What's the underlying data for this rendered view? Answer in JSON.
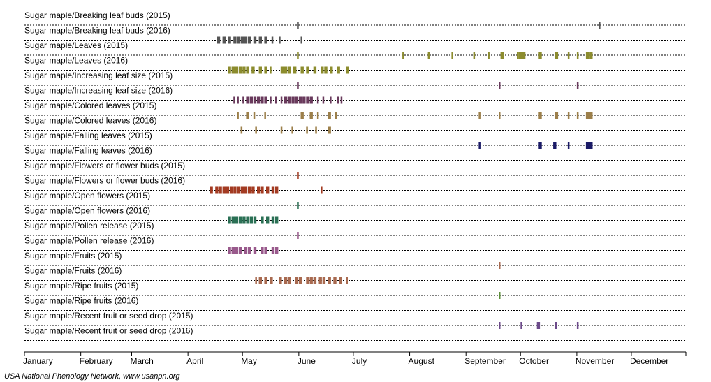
{
  "chart_data": {
    "type": "timeline",
    "xlabel": "",
    "months": [
      "January",
      "February",
      "March",
      "April",
      "May",
      "June",
      "July",
      "August",
      "September",
      "October",
      "November",
      "December"
    ],
    "x_domain_days": [
      1,
      365
    ],
    "rows": [
      {
        "label": "Sugar maple/Breaking leaf buds (2015)",
        "color": "#555555",
        "observations": [
          [
            151,
            152
          ],
          [
            317,
            318
          ]
        ]
      },
      {
        "label": "Sugar maple/Breaking leaf buds (2016)",
        "color": "#555555",
        "observations": [
          [
            107,
            109
          ],
          [
            110,
            112
          ],
          [
            113,
            115
          ],
          [
            116,
            118
          ],
          [
            118,
            120
          ],
          [
            120,
            122
          ],
          [
            122,
            124
          ],
          [
            124,
            126
          ],
          [
            127,
            129
          ],
          [
            130,
            132
          ],
          [
            133,
            135
          ],
          [
            137,
            138
          ],
          [
            141,
            142
          ],
          [
            153,
            154
          ]
        ]
      },
      {
        "label": "Sugar maple/Leaves (2015)",
        "color": "#8c8c2e",
        "observations": [
          [
            151,
            152
          ],
          [
            209,
            210
          ],
          [
            223,
            224
          ],
          [
            236,
            237
          ],
          [
            248,
            249
          ],
          [
            256,
            257
          ],
          [
            263,
            265
          ],
          [
            272,
            273
          ],
          [
            273,
            275
          ],
          [
            275,
            277
          ],
          [
            284,
            286
          ],
          [
            293,
            295
          ],
          [
            300,
            301
          ],
          [
            305,
            306
          ],
          [
            310,
            312
          ],
          [
            312,
            314
          ]
        ]
      },
      {
        "label": "Sugar maple/Leaves (2016)",
        "color": "#8c8c2e",
        "observations": [
          [
            113,
            115
          ],
          [
            115,
            117
          ],
          [
            117,
            119
          ],
          [
            119,
            121
          ],
          [
            121,
            123
          ],
          [
            123,
            125
          ],
          [
            126,
            128
          ],
          [
            130,
            132
          ],
          [
            133,
            135
          ],
          [
            136,
            137
          ],
          [
            142,
            144
          ],
          [
            144,
            146
          ],
          [
            146,
            148
          ],
          [
            149,
            151
          ],
          [
            153,
            155
          ],
          [
            156,
            158
          ],
          [
            160,
            162
          ],
          [
            164,
            166
          ],
          [
            166,
            168
          ],
          [
            169,
            171
          ],
          [
            173,
            175
          ],
          [
            178,
            180
          ]
        ]
      },
      {
        "label": "Sugar maple/Increasing leaf size (2015)",
        "color": "#693a5c",
        "observations": [
          [
            151,
            152
          ],
          [
            262,
            263
          ],
          [
            305,
            306
          ]
        ]
      },
      {
        "label": "Sugar maple/Increasing leaf size (2016)",
        "color": "#693a5c",
        "observations": [
          [
            116,
            117
          ],
          [
            118,
            119
          ],
          [
            121,
            122
          ],
          [
            123,
            125
          ],
          [
            125,
            127
          ],
          [
            127,
            129
          ],
          [
            129,
            131
          ],
          [
            131,
            133
          ],
          [
            133,
            135
          ],
          [
            136,
            137
          ],
          [
            139,
            140
          ],
          [
            142,
            143
          ],
          [
            144,
            146
          ],
          [
            146,
            148
          ],
          [
            148,
            150
          ],
          [
            150,
            152
          ],
          [
            152,
            154
          ],
          [
            154,
            156
          ],
          [
            156,
            158
          ],
          [
            158,
            160
          ],
          [
            162,
            163
          ],
          [
            165,
            166
          ],
          [
            169,
            170
          ],
          [
            173,
            174
          ],
          [
            175,
            176
          ]
        ]
      },
      {
        "label": "Sugar maple/Colored leaves (2015)",
        "color": "#9c7f4a",
        "observations": [
          [
            118,
            119
          ],
          [
            123,
            125
          ],
          [
            127,
            128
          ],
          [
            133,
            134
          ],
          [
            153,
            155
          ],
          [
            158,
            160
          ],
          [
            162,
            163
          ],
          [
            168,
            170
          ],
          [
            172,
            173
          ],
          [
            251,
            252
          ],
          [
            262,
            263
          ],
          [
            284,
            286
          ],
          [
            293,
            295
          ],
          [
            300,
            301
          ],
          [
            305,
            306
          ],
          [
            310,
            314
          ]
        ]
      },
      {
        "label": "Sugar maple/Colored leaves (2016)",
        "color": "#9c7f4a",
        "observations": [
          [
            120,
            121
          ],
          [
            128,
            129
          ],
          [
            142,
            143
          ],
          [
            148,
            149
          ],
          [
            156,
            157
          ],
          [
            161,
            162
          ],
          [
            168,
            170
          ]
        ]
      },
      {
        "label": "Sugar maple/Falling leaves (2015)",
        "color": "#1a1a66",
        "observations": [
          [
            251,
            252
          ],
          [
            284,
            286
          ],
          [
            292,
            294
          ],
          [
            300,
            301
          ],
          [
            310,
            314
          ]
        ]
      },
      {
        "label": "Sugar maple/Falling leaves (2016)",
        "color": "#1a1a66",
        "observations": []
      },
      {
        "label": "Sugar maple/Flowers or flower buds (2015)",
        "color": "#a33b22",
        "observations": [
          [
            151,
            152
          ]
        ]
      },
      {
        "label": "Sugar maple/Flowers or flower buds (2016)",
        "color": "#a33b22",
        "observations": [
          [
            103,
            105
          ],
          [
            106,
            108
          ],
          [
            108,
            110
          ],
          [
            110,
            112
          ],
          [
            112,
            114
          ],
          [
            114,
            116
          ],
          [
            116,
            118
          ],
          [
            118,
            120
          ],
          [
            120,
            122
          ],
          [
            122,
            124
          ],
          [
            124,
            126
          ],
          [
            126,
            128
          ],
          [
            129,
            131
          ],
          [
            131,
            133
          ],
          [
            134,
            136
          ],
          [
            137,
            139
          ],
          [
            139,
            141
          ],
          [
            164,
            165
          ]
        ]
      },
      {
        "label": "Sugar maple/Open flowers (2015)",
        "color": "#2b7055",
        "observations": [
          [
            151,
            152
          ]
        ]
      },
      {
        "label": "Sugar maple/Open flowers (2016)",
        "color": "#2b7055",
        "observations": [
          [
            113,
            115
          ],
          [
            115,
            117
          ],
          [
            117,
            119
          ],
          [
            119,
            121
          ],
          [
            121,
            123
          ],
          [
            123,
            125
          ],
          [
            125,
            127
          ],
          [
            127,
            129
          ],
          [
            131,
            133
          ],
          [
            134,
            136
          ],
          [
            137,
            139
          ],
          [
            139,
            141
          ]
        ]
      },
      {
        "label": "Sugar maple/Pollen release (2015)",
        "color": "#995a8c",
        "observations": [
          [
            151,
            152
          ]
        ]
      },
      {
        "label": "Sugar maple/Pollen release (2016)",
        "color": "#995a8c",
        "observations": [
          [
            113,
            115
          ],
          [
            115,
            117
          ],
          [
            117,
            119
          ],
          [
            119,
            121
          ],
          [
            122,
            124
          ],
          [
            124,
            126
          ],
          [
            127,
            129
          ],
          [
            131,
            133
          ],
          [
            133,
            135
          ],
          [
            137,
            139
          ],
          [
            139,
            141
          ]
        ]
      },
      {
        "label": "Sugar maple/Fruits (2015)",
        "color": "#a86a50",
        "observations": [
          [
            262,
            263
          ]
        ]
      },
      {
        "label": "Sugar maple/Fruits (2016)",
        "color": "#a86a50",
        "observations": [
          [
            128,
            129
          ],
          [
            130,
            132
          ],
          [
            133,
            135
          ],
          [
            136,
            138
          ],
          [
            141,
            143
          ],
          [
            144,
            146
          ],
          [
            146,
            148
          ],
          [
            150,
            152
          ],
          [
            152,
            154
          ],
          [
            156,
            158
          ],
          [
            158,
            160
          ],
          [
            160,
            162
          ],
          [
            163,
            165
          ],
          [
            165,
            167
          ],
          [
            168,
            170
          ],
          [
            171,
            173
          ],
          [
            174,
            176
          ],
          [
            178,
            179
          ]
        ]
      },
      {
        "label": "Sugar maple/Ripe fruits (2015)",
        "color": "#5d8f3a",
        "observations": [
          [
            262,
            263
          ]
        ]
      },
      {
        "label": "Sugar maple/Ripe fruits (2016)",
        "color": "#5d8f3a",
        "observations": []
      },
      {
        "label": "Sugar maple/Recent fruit or seed drop (2015)",
        "color": "#6c4a8a",
        "observations": [
          [
            262,
            263
          ],
          [
            274,
            275
          ],
          [
            283,
            285
          ],
          [
            293,
            294
          ],
          [
            305,
            306
          ]
        ]
      },
      {
        "label": "Sugar maple/Recent fruit or seed drop (2016)",
        "color": "#6c4a8a",
        "observations": []
      }
    ]
  },
  "footer": {
    "credit": "USA National Phenology Network, www.usanpn.org"
  }
}
